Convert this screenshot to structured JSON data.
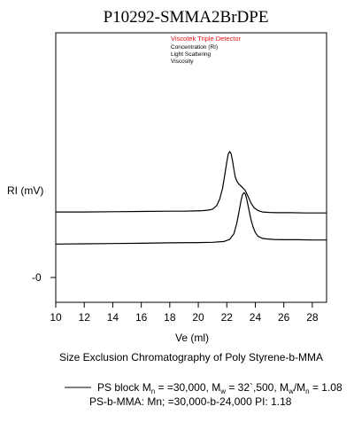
{
  "chart_data": {
    "type": "line",
    "title": "P10292-SMMA2BrDPE",
    "xlabel": "Ve (ml)",
    "ylabel": "RI (mV)",
    "y_tick_labels": [
      "-0"
    ],
    "xlim": [
      10,
      29
    ],
    "x_ticks": [
      10,
      12,
      14,
      16,
      18,
      20,
      22,
      24,
      26,
      28
    ],
    "legend": {
      "title": "Viscotek Triple Detector",
      "title_color": "#e8141b",
      "entries": [
        "Concentration (RI)",
        "Light Scattering",
        "Viscosity"
      ],
      "placement": "top-right"
    },
    "caption": "Size Exclusion Chromatography of Poly Styrene-b-MMA",
    "footer": {
      "line1_prefix": "PS block  M",
      "line1_n_sub": "n",
      "line1_mid": " = =30,000, M",
      "line1_w_sub": "w",
      "line1_mid2": " = 32`,500,  M",
      "line1_w2_sub": "w",
      "line1_slash": "/M",
      "line1_n2_sub": "n",
      "line1_end": " = 1.08",
      "line2": "PS-b-MMA:  Mn; =30,000-b-24,000     PI: 1.18"
    },
    "series": [
      {
        "x": [
          10,
          12,
          14,
          16,
          18,
          19,
          19.8,
          20.3,
          20.7,
          21.0,
          21.3,
          21.5,
          21.7,
          21.85,
          22.0,
          22.1,
          22.2,
          22.3,
          22.4,
          22.5,
          22.6,
          22.75,
          22.9,
          23.1,
          23.3,
          23.5,
          23.7,
          23.9,
          24.2,
          24.5,
          25.0,
          25.5,
          26.5,
          27.5,
          29
        ],
        "y": [
          2.55,
          2.55,
          2.56,
          2.57,
          2.58,
          2.58,
          2.59,
          2.6,
          2.62,
          2.66,
          2.8,
          3.05,
          3.45,
          3.95,
          4.5,
          4.8,
          4.9,
          4.82,
          4.55,
          4.2,
          3.9,
          3.7,
          3.6,
          3.5,
          3.38,
          3.15,
          2.9,
          2.72,
          2.6,
          2.55,
          2.53,
          2.52,
          2.52,
          2.51,
          2.51
        ]
      },
      {
        "x": [
          10,
          12,
          14,
          16,
          18,
          20,
          21,
          21.8,
          22.2,
          22.5,
          22.7,
          22.85,
          23.0,
          23.1,
          23.2,
          23.3,
          23.4,
          23.55,
          23.7,
          23.85,
          24.0,
          24.2,
          24.5,
          24.8,
          25.3,
          26,
          27,
          28,
          29
        ],
        "y": [
          1.3,
          1.31,
          1.32,
          1.33,
          1.35,
          1.36,
          1.37,
          1.4,
          1.48,
          1.7,
          2.1,
          2.55,
          3.0,
          3.22,
          3.3,
          3.25,
          3.05,
          2.65,
          2.25,
          1.95,
          1.75,
          1.6,
          1.52,
          1.5,
          1.48,
          1.47,
          1.47,
          1.46,
          1.46
        ]
      }
    ]
  }
}
